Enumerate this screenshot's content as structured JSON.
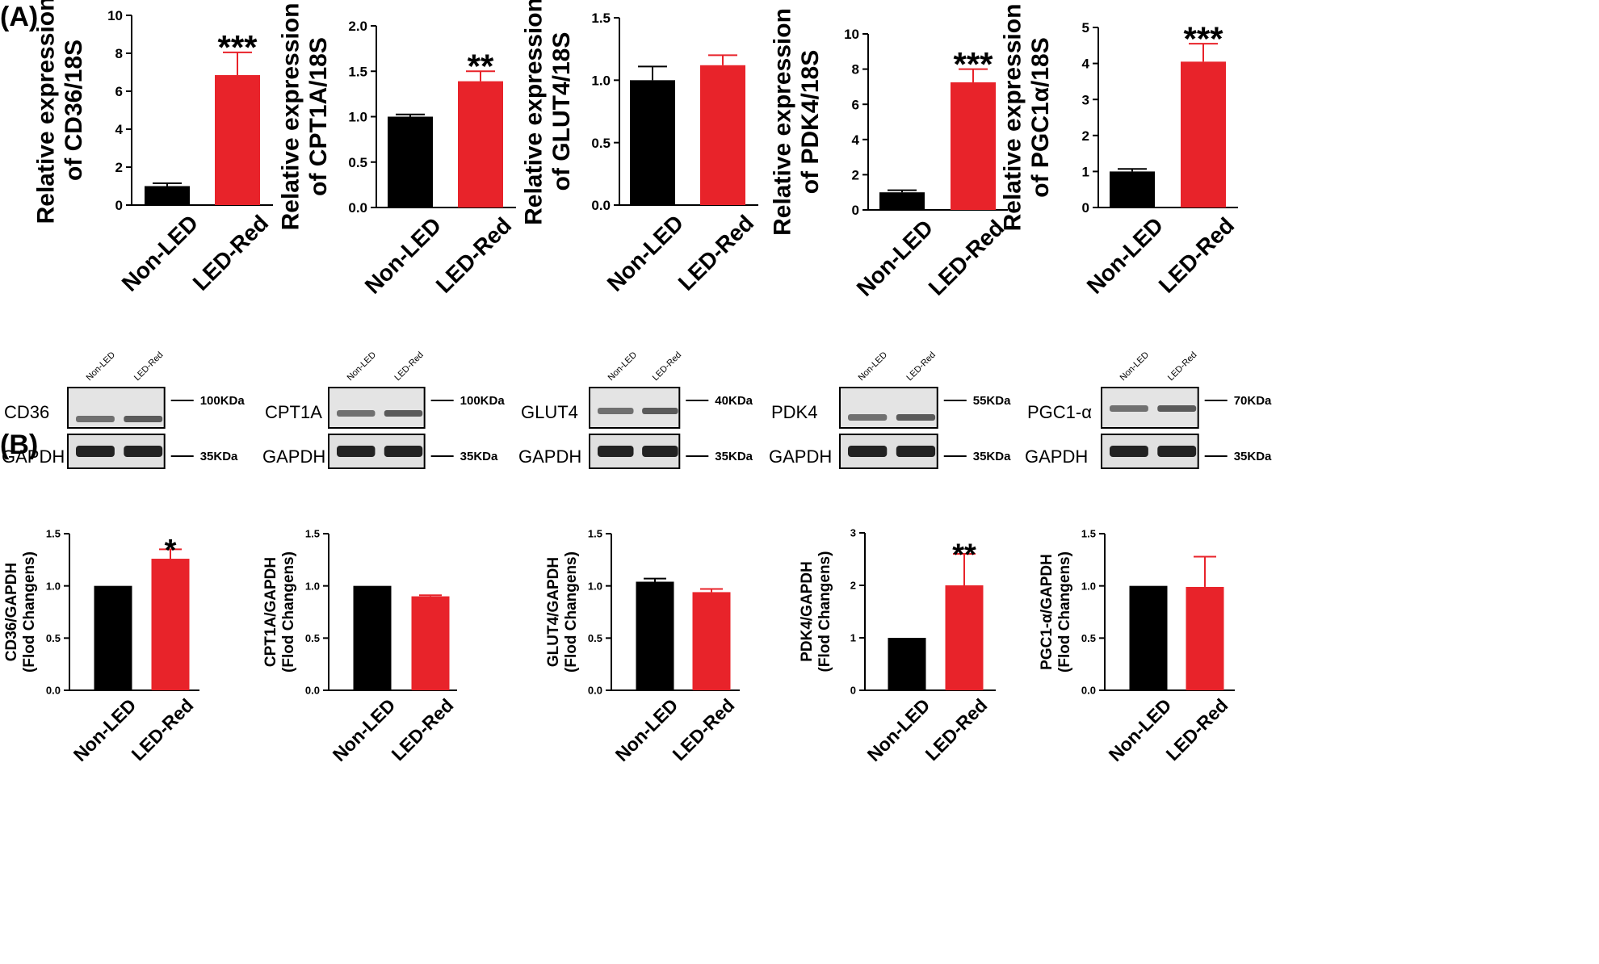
{
  "panel_labels": {
    "a": "(A)",
    "b": "(B)"
  },
  "colors": {
    "control": "#000000",
    "treatment": "#e8232a",
    "axis": "#000000"
  },
  "panel_a": {
    "chart_data": [
      {
        "type": "bar",
        "categories": [
          "Non-LED",
          "LED-Red"
        ],
        "values": [
          1.0,
          6.85
        ],
        "errors": [
          0.15,
          1.2
        ],
        "ylabel_line1": "Relative expression",
        "ylabel_line2": "of CD36/18S",
        "ylim": [
          0,
          10
        ],
        "yticks": [
          "0",
          "2",
          "4",
          "6",
          "8",
          "10"
        ],
        "significance": "***"
      },
      {
        "type": "bar",
        "categories": [
          "Non-LED",
          "LED-Red"
        ],
        "values": [
          1.0,
          1.39
        ],
        "errors": [
          0.025,
          0.11
        ],
        "ylabel_line1": "Relative expression",
        "ylabel_line2": "of CPT1A/18S",
        "ylim": [
          0,
          2.0
        ],
        "yticks": [
          "0.0",
          "0.5",
          "1.0",
          "1.5",
          "2.0"
        ],
        "significance": "**"
      },
      {
        "type": "bar",
        "categories": [
          "Non-LED",
          "LED-Red"
        ],
        "values": [
          1.0,
          1.12
        ],
        "errors": [
          0.11,
          0.08
        ],
        "ylabel_line1": "Relative expression",
        "ylabel_line2": "of GLUT4/18S",
        "ylim": [
          0,
          1.5
        ],
        "yticks": [
          "0.0",
          "0.5",
          "1.0",
          "1.5"
        ],
        "significance": ""
      },
      {
        "type": "bar",
        "categories": [
          "Non-LED",
          "LED-Red"
        ],
        "values": [
          1.0,
          7.25
        ],
        "errors": [
          0.12,
          0.75
        ],
        "ylabel_line1": "Relative expression",
        "ylabel_line2": "of PDK4/18S",
        "ylim": [
          0,
          10
        ],
        "yticks": [
          "0",
          "2",
          "4",
          "6",
          "8",
          "10"
        ],
        "significance": "***"
      },
      {
        "type": "bar",
        "categories": [
          "Non-LED",
          "LED-Red"
        ],
        "values": [
          1.0,
          4.05
        ],
        "errors": [
          0.07,
          0.5
        ],
        "ylabel_line1": "Relative expression",
        "ylabel_line2": "of PGC1α/18S",
        "ylim": [
          0,
          5
        ],
        "yticks": [
          "0",
          "1",
          "2",
          "3",
          "4",
          "5"
        ],
        "significance": "***"
      }
    ]
  },
  "panel_b_blots": [
    {
      "lane_labels": [
        "Non-LED",
        "LED-Red"
      ],
      "protein": "CD36",
      "protein_kda": "100KDa",
      "loading": "GAPDH",
      "loading_kda": "35KDa"
    },
    {
      "lane_labels": [
        "Non-LED",
        "LED-Red"
      ],
      "protein": "CPT1A",
      "protein_kda": "100KDa",
      "loading": "GAPDH",
      "loading_kda": "35KDa"
    },
    {
      "lane_labels": [
        "Non-LED",
        "LED-Red"
      ],
      "protein": "GLUT4",
      "protein_kda": "40KDa",
      "loading": "GAPDH",
      "loading_kda": "35KDa"
    },
    {
      "lane_labels": [
        "Non-LED",
        "LED-Red"
      ],
      "protein": "PDK4",
      "protein_kda": "55KDa",
      "loading": "GAPDH",
      "loading_kda": "35KDa"
    },
    {
      "lane_labels": [
        "Non-LED",
        "LED-Red"
      ],
      "protein": "PGC1-α",
      "protein_kda": "70KDa",
      "loading": "GAPDH",
      "loading_kda": "35KDa"
    }
  ],
  "panel_b": {
    "chart_data": [
      {
        "type": "bar",
        "categories": [
          "Non-LED",
          "LED-Red"
        ],
        "values": [
          1.0,
          1.26
        ],
        "errors": [
          0,
          0.09
        ],
        "ylabel_line1": "CD36/GAPDH",
        "ylabel_line2": "(Flod Changens)",
        "ylim": [
          0,
          1.5
        ],
        "yticks": [
          "0.0",
          "0.5",
          "1.0",
          "1.5"
        ],
        "significance": "*"
      },
      {
        "type": "bar",
        "categories": [
          "Non-LED",
          "LED-Red"
        ],
        "values": [
          1.0,
          0.9
        ],
        "errors": [
          0,
          0.01
        ],
        "ylabel_line1": "CPT1A/GAPDH",
        "ylabel_line2": "(Flod Changens)",
        "ylim": [
          0,
          1.5
        ],
        "yticks": [
          "0.0",
          "0.5",
          "1.0",
          "1.5"
        ],
        "significance": ""
      },
      {
        "type": "bar",
        "categories": [
          "Non-LED",
          "LED-Red"
        ],
        "values": [
          1.04,
          0.94
        ],
        "errors": [
          0.03,
          0.03
        ],
        "ylabel_line1": "GLUT4/GAPDH",
        "ylabel_line2": "(Flod Changens)",
        "ylim": [
          0,
          1.5
        ],
        "yticks": [
          "0.0",
          "0.5",
          "1.0",
          "1.5"
        ],
        "significance": ""
      },
      {
        "type": "bar",
        "categories": [
          "Non-LED",
          "LED-Red"
        ],
        "values": [
          1.0,
          2.0
        ],
        "errors": [
          0,
          0.6
        ],
        "ylabel_line1": "PDK4/GAPDH",
        "ylabel_line2": "(Flod Changens)",
        "ylim": [
          0,
          3
        ],
        "yticks": [
          "0",
          "1",
          "2",
          "3"
        ],
        "significance": "**"
      },
      {
        "type": "bar",
        "categories": [
          "Non-LED",
          "LED-Red"
        ],
        "values": [
          1.0,
          0.99
        ],
        "errors": [
          0,
          0.29
        ],
        "ylabel_line1": "PGC1-α/GAPDH",
        "ylabel_line2": "(Flod Changens)",
        "ylim": [
          0,
          1.5
        ],
        "yticks": [
          "0.0",
          "0.5",
          "1.0",
          "1.5"
        ],
        "significance": ""
      }
    ]
  }
}
